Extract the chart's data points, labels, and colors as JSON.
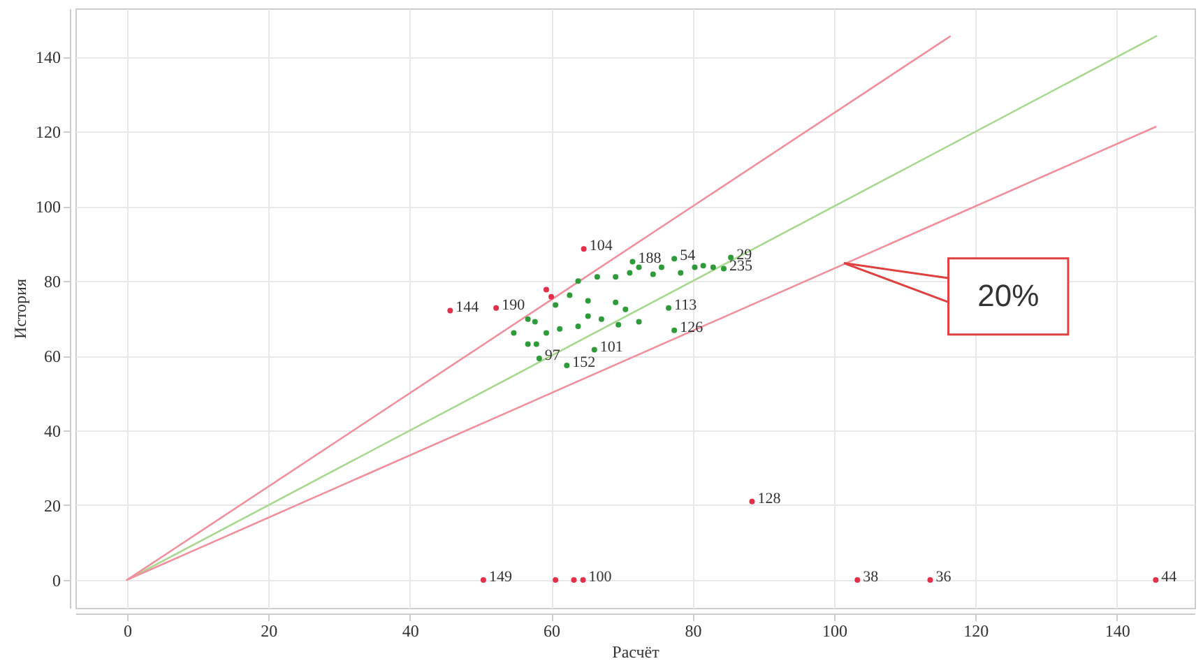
{
  "chart_data": {
    "type": "scatter",
    "xlabel": "Расчёт",
    "ylabel": "История",
    "xlim": [
      -7.3,
      151
    ],
    "ylim": [
      -7.5,
      153
    ],
    "xticks": [
      0,
      20,
      40,
      60,
      80,
      100,
      120,
      140
    ],
    "yticks": [
      0,
      20,
      40,
      60,
      80,
      100,
      120,
      140
    ],
    "grid": true,
    "annotations": [
      {
        "text": "20%",
        "x": 101.4,
        "y": 84.8
      },
      {
        "text": "152",
        "x": 62.2,
        "y": 57.4
      },
      {
        "text": "101",
        "x": 66.1,
        "y": 61.6
      },
      {
        "text": "126",
        "x": 77.4,
        "y": 66.8
      },
      {
        "text": "113",
        "x": 76.6,
        "y": 72.8
      },
      {
        "text": "29",
        "x": 85.4,
        "y": 86.3
      },
      {
        "text": "235",
        "x": 84.4,
        "y": 83.3
      },
      {
        "text": "54",
        "x": 77.4,
        "y": 86
      },
      {
        "text": "188",
        "x": 71.5,
        "y": 85.2
      },
      {
        "text": "97",
        "x": 58.3,
        "y": 59.3
      },
      {
        "text": "104",
        "x": 64.6,
        "y": 88.6
      },
      {
        "text": "144",
        "x": 45.7,
        "y": 72.1
      },
      {
        "text": "190",
        "x": 52.2,
        "y": 72.8
      },
      {
        "text": "149",
        "x": 50.4,
        "y": 0
      },
      {
        "text": "100",
        "x": 64.5,
        "y": 0
      },
      {
        "text": "128",
        "x": 88.4,
        "y": 21
      },
      {
        "text": "38",
        "x": 103.3,
        "y": 0
      },
      {
        "text": "36",
        "x": 113.6,
        "y": 0
      },
      {
        "text": "44",
        "x": 145.5,
        "y": 0
      }
    ],
    "series": [
      {
        "type": "line",
        "color": "#a8d890",
        "x": [
          0,
          145.6
        ],
        "values": [
          0,
          145.6
        ]
      },
      {
        "type": "line",
        "color": "#f0909c",
        "x": [
          0,
          116.4
        ],
        "values": [
          0,
          145.5
        ]
      },
      {
        "type": "line",
        "color": "#f0909c",
        "x": [
          0,
          145.5
        ],
        "values": [
          0,
          121.3
        ]
      },
      {
        "type": "scatter",
        "marker": "circle",
        "color": "#2e9a3a",
        "x": [
          62.2,
          66.1,
          77.4,
          76.6,
          85.4,
          84.4,
          77.4,
          71.5,
          69.5,
          58.3,
          54.7,
          57.7,
          56.7,
          57.9,
          60.6,
          61.2,
          63.8,
          65.2,
          66.5,
          69.1,
          71.1,
          72.4,
          74.4,
          75.6,
          78.3,
          80.3,
          81.5,
          82.9,
          69.1,
          70.5,
          72.4,
          63.8,
          62.6,
          65.2,
          67.1,
          59.3,
          56.7
        ],
        "values": [
          57.4,
          61.6,
          66.8,
          72.8,
          86.3,
          83.3,
          86,
          85.2,
          68.3,
          59.3,
          66.1,
          69.1,
          69.8,
          63.1,
          73.6,
          67.2,
          67.9,
          70.6,
          81.1,
          81.1,
          82.2,
          83.7,
          81.8,
          83.7,
          82.2,
          83.7,
          84.1,
          83.7,
          74.3,
          72.4,
          69.1,
          80,
          76.2,
          74.7,
          69.8,
          66.1,
          63.1
        ]
      },
      {
        "marker": "circle",
        "color": "#e0304a",
        "x": [
          64.6,
          45.7,
          52.2,
          59.3,
          60,
          50.4,
          60.6,
          63.2,
          64.5,
          88.4,
          103.3,
          113.6,
          145.5
        ],
        "values": [
          88.6,
          72.1,
          72.8,
          77.7,
          75.8,
          0,
          0,
          0,
          0,
          21,
          0,
          0,
          0
        ]
      }
    ]
  }
}
